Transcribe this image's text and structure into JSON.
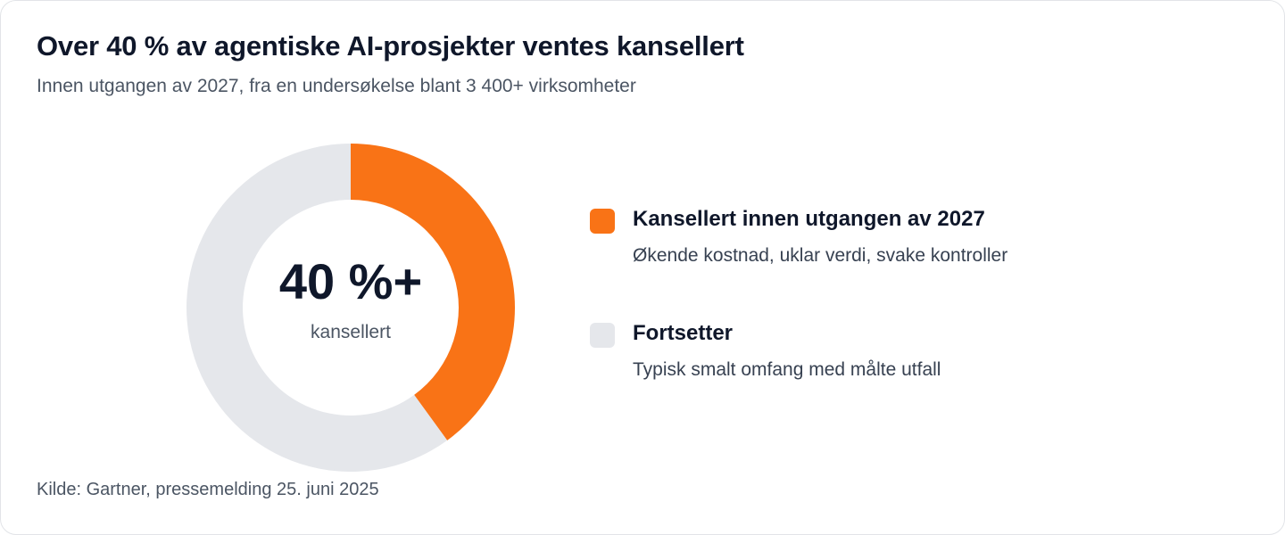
{
  "title": "Over 40 % av agentiske AI-prosjekter ventes kansellert",
  "subtitle": "Innen utgangen av 2027, fra en undersøkelse blant 3 400+ virksomheter",
  "center": {
    "value": "40 %+",
    "label": "kansellert"
  },
  "legend": [
    {
      "title": "Kansellert innen utgangen av 2027",
      "description": "Økende kostnad, uklar verdi, svake kontroller",
      "color": "#f97316"
    },
    {
      "title": "Fortsetter",
      "description": "Typisk smalt omfang med målte utfall",
      "color": "#e5e7eb"
    }
  ],
  "source": "Kilde: Gartner, pressemelding 25. juni 2025",
  "chart_data": {
    "type": "pie",
    "variant": "donut",
    "categories": [
      "Kansellert innen utgangen av 2027",
      "Fortsetter"
    ],
    "values": [
      40,
      60
    ],
    "unit": "%",
    "colors": [
      "#f97316",
      "#e5e7eb"
    ],
    "title": "Over 40 % av agentiske AI-prosjekter ventes kansellert",
    "subtitle": "Innen utgangen av 2027, fra en undersøkelse blant 3 400+ virksomheter",
    "legend": "right"
  }
}
